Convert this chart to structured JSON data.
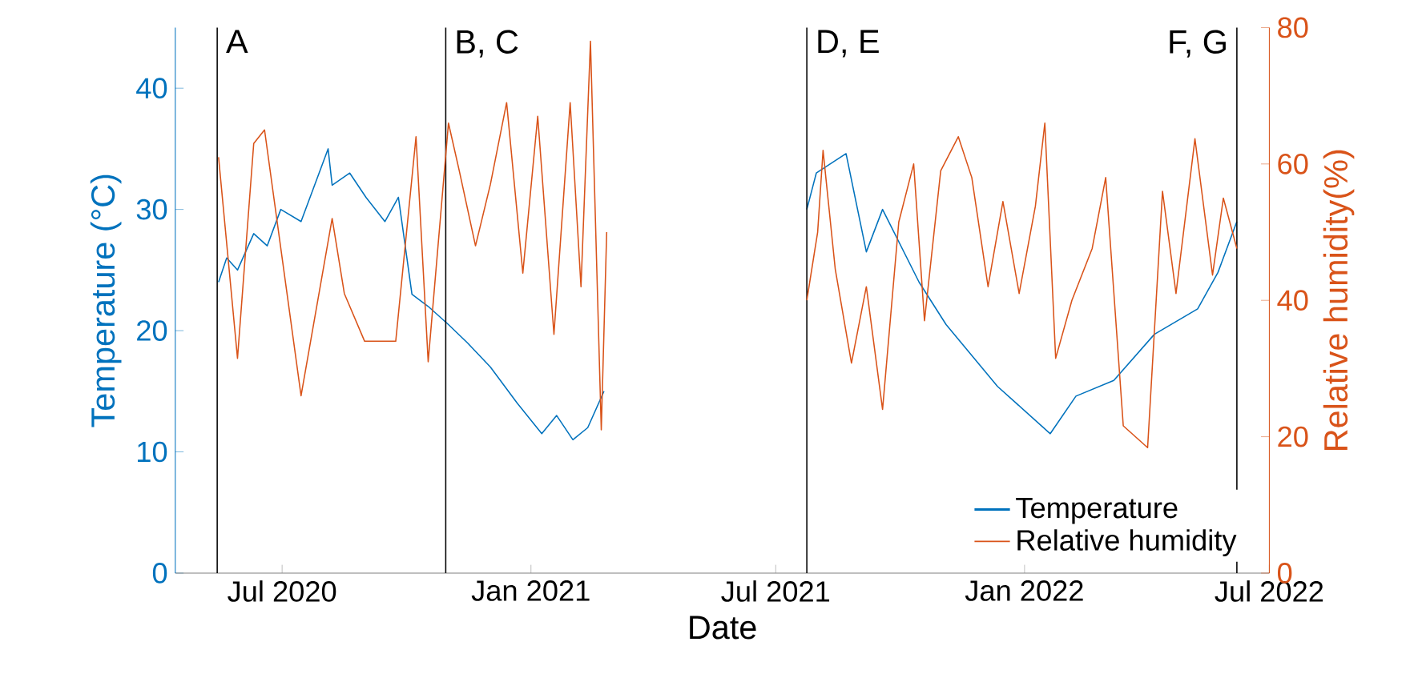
{
  "chart_data": {
    "type": "line",
    "xlabel": "Date",
    "ylabel": "Temperature (°C)",
    "y2label": "Relative humidity(%)",
    "xlim": [
      "2020-04-13",
      "2022-07-01"
    ],
    "xticks": [
      {
        "value": "2020-07-01",
        "label": "Jul 2020"
      },
      {
        "value": "2021-01-01",
        "label": "Jan 2021"
      },
      {
        "value": "2021-07-01",
        "label": "Jul 2021"
      },
      {
        "value": "2022-01-01",
        "label": "Jan 2022"
      },
      {
        "value": "2022-07-01",
        "label": "Jul 2022"
      }
    ],
    "ylim": [
      0,
      45
    ],
    "yticks": [
      0,
      10,
      20,
      30,
      40
    ],
    "y2lim": [
      0,
      80
    ],
    "y2ticks": [
      0,
      20,
      40,
      60,
      80
    ],
    "legend": "bottom right",
    "grid": false,
    "marker": "none",
    "line_style": "solid",
    "ref_lines": [
      {
        "axis": "x",
        "value": "2020-05-14",
        "label": "A",
        "color": "#000000"
      },
      {
        "axis": "x",
        "value": "2020-10-30",
        "label": "B, C",
        "color": "#000000"
      },
      {
        "axis": "x",
        "value": "2021-07-24",
        "label": "D, E",
        "color": "#000000"
      },
      {
        "axis": "x",
        "value": "2022-06-07",
        "label": "F, G",
        "color": "#000000"
      }
    ],
    "series": [
      {
        "name": "Temperature",
        "color": "#0072bd",
        "axis": "y",
        "x": [
          "2020-05-15",
          "2020-05-21",
          "2020-05-29",
          "2020-06-10",
          "2020-06-20",
          "2020-06-30",
          "2020-07-15",
          "2020-08-04",
          "2020-08-07",
          "2020-08-20",
          "2020-09-01",
          "2020-09-15",
          "2020-09-25",
          "2020-10-05",
          "2020-10-17",
          "2020-11-01",
          "2020-11-15",
          "2020-12-02",
          "2020-12-22",
          "2021-01-09",
          "2021-01-20",
          "2021-02-01",
          "2021-02-12",
          "2021-02-24",
          "2021-05-01",
          "2021-07-24",
          "2021-07-31",
          "2021-08-22",
          "2021-09-06",
          "2021-09-18",
          "2021-10-15",
          "2021-11-04",
          "2021-12-12",
          "2022-01-20",
          "2022-02-08",
          "2022-03-08",
          "2022-04-07",
          "2022-05-09",
          "2022-05-24",
          "2022-06-07"
        ],
        "values": [
          24,
          26,
          25,
          28,
          27,
          30,
          29,
          35,
          32,
          33,
          31,
          29,
          31,
          23,
          22,
          20.5,
          19,
          17,
          14,
          11.5,
          13,
          11,
          12,
          15,
          null,
          30,
          33,
          34.6,
          26.5,
          30,
          24,
          20.5,
          15.4,
          11.5,
          14.6,
          15.9,
          19.7,
          21.8,
          24.8,
          29
        ]
      },
      {
        "name": "Relative humidity",
        "color": "#d95319",
        "axis": "y2",
        "x": [
          "2020-05-15",
          "2020-05-29",
          "2020-06-10",
          "2020-06-18",
          "2020-07-15",
          "2020-08-07",
          "2020-08-16",
          "2020-08-31",
          "2020-09-23",
          "2020-10-08",
          "2020-10-17",
          "2020-11-01",
          "2020-11-09",
          "2020-11-21",
          "2020-12-02",
          "2020-12-14",
          "2020-12-26",
          "2021-01-06",
          "2021-01-18",
          "2021-01-30",
          "2021-02-07",
          "2021-02-14",
          "2021-02-22",
          "2021-02-26",
          "2021-05-01",
          "2021-07-24",
          "2021-08-01",
          "2021-08-05",
          "2021-08-14",
          "2021-08-26",
          "2021-09-06",
          "2021-09-18",
          "2021-09-30",
          "2021-10-11",
          "2021-10-19",
          "2021-10-31",
          "2021-11-13",
          "2021-11-23",
          "2021-12-05",
          "2021-12-16",
          "2021-12-28",
          "2022-01-09",
          "2022-01-16",
          "2022-01-24",
          "2022-02-05",
          "2022-02-20",
          "2022-03-02",
          "2022-03-15",
          "2022-04-02",
          "2022-04-13",
          "2022-04-23",
          "2022-05-07",
          "2022-05-20",
          "2022-05-28",
          "2022-06-07"
        ],
        "values": [
          61,
          31.5,
          63,
          65,
          26,
          52,
          41,
          34,
          34,
          64,
          31,
          66,
          59,
          48,
          57,
          69,
          44,
          67,
          35,
          69,
          42,
          78,
          21,
          50,
          null,
          40,
          50,
          62,
          44.6,
          30.8,
          42,
          24,
          51.5,
          60,
          37,
          59,
          64,
          58,
          42,
          54.5,
          41,
          53.8,
          66,
          31.5,
          40,
          47.6,
          58,
          21.6,
          18.4,
          56,
          41,
          63.7,
          43.7,
          55,
          47.6
        ]
      }
    ]
  }
}
